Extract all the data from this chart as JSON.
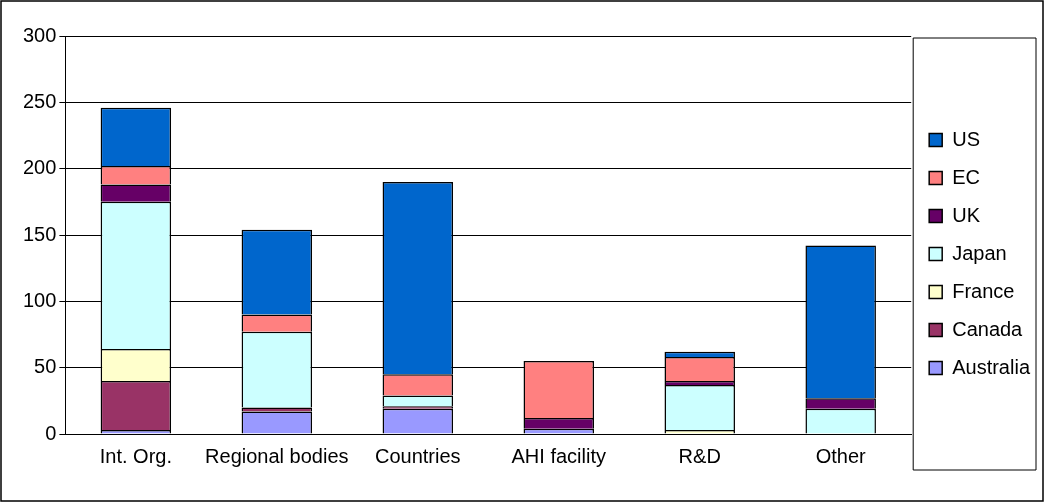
{
  "chart_data": {
    "type": "bar",
    "stacked": true,
    "categories": [
      "Int. Org.",
      "Regional bodies",
      "Countries",
      "AHI facility",
      "R&D",
      "Other"
    ],
    "series": [
      {
        "name": "Australia",
        "color": "#9999ff",
        "values": [
          3,
          17,
          19,
          4,
          0,
          0
        ]
      },
      {
        "name": "Canada",
        "color": "#993366",
        "values": [
          37,
          3,
          2,
          0,
          0,
          0
        ]
      },
      {
        "name": "France",
        "color": "#ffffcc",
        "values": [
          24,
          0,
          0,
          0,
          3,
          0
        ]
      },
      {
        "name": "Japan",
        "color": "#ccffff",
        "values": [
          111,
          57,
          8,
          0,
          34,
          19
        ]
      },
      {
        "name": "UK",
        "color": "#660066",
        "values": [
          13,
          0,
          0,
          8,
          3,
          8
        ]
      },
      {
        "name": "EC",
        "color": "#ff8080",
        "values": [
          14,
          13,
          16,
          43,
          18,
          0
        ]
      },
      {
        "name": "US",
        "color": "#0066cc",
        "values": [
          44,
          64,
          145,
          0,
          4,
          115
        ]
      }
    ],
    "ylim": [
      0,
      300
    ],
    "yticks": [
      0,
      50,
      100,
      150,
      200,
      250,
      300
    ],
    "grid": "y",
    "legend": "right"
  }
}
